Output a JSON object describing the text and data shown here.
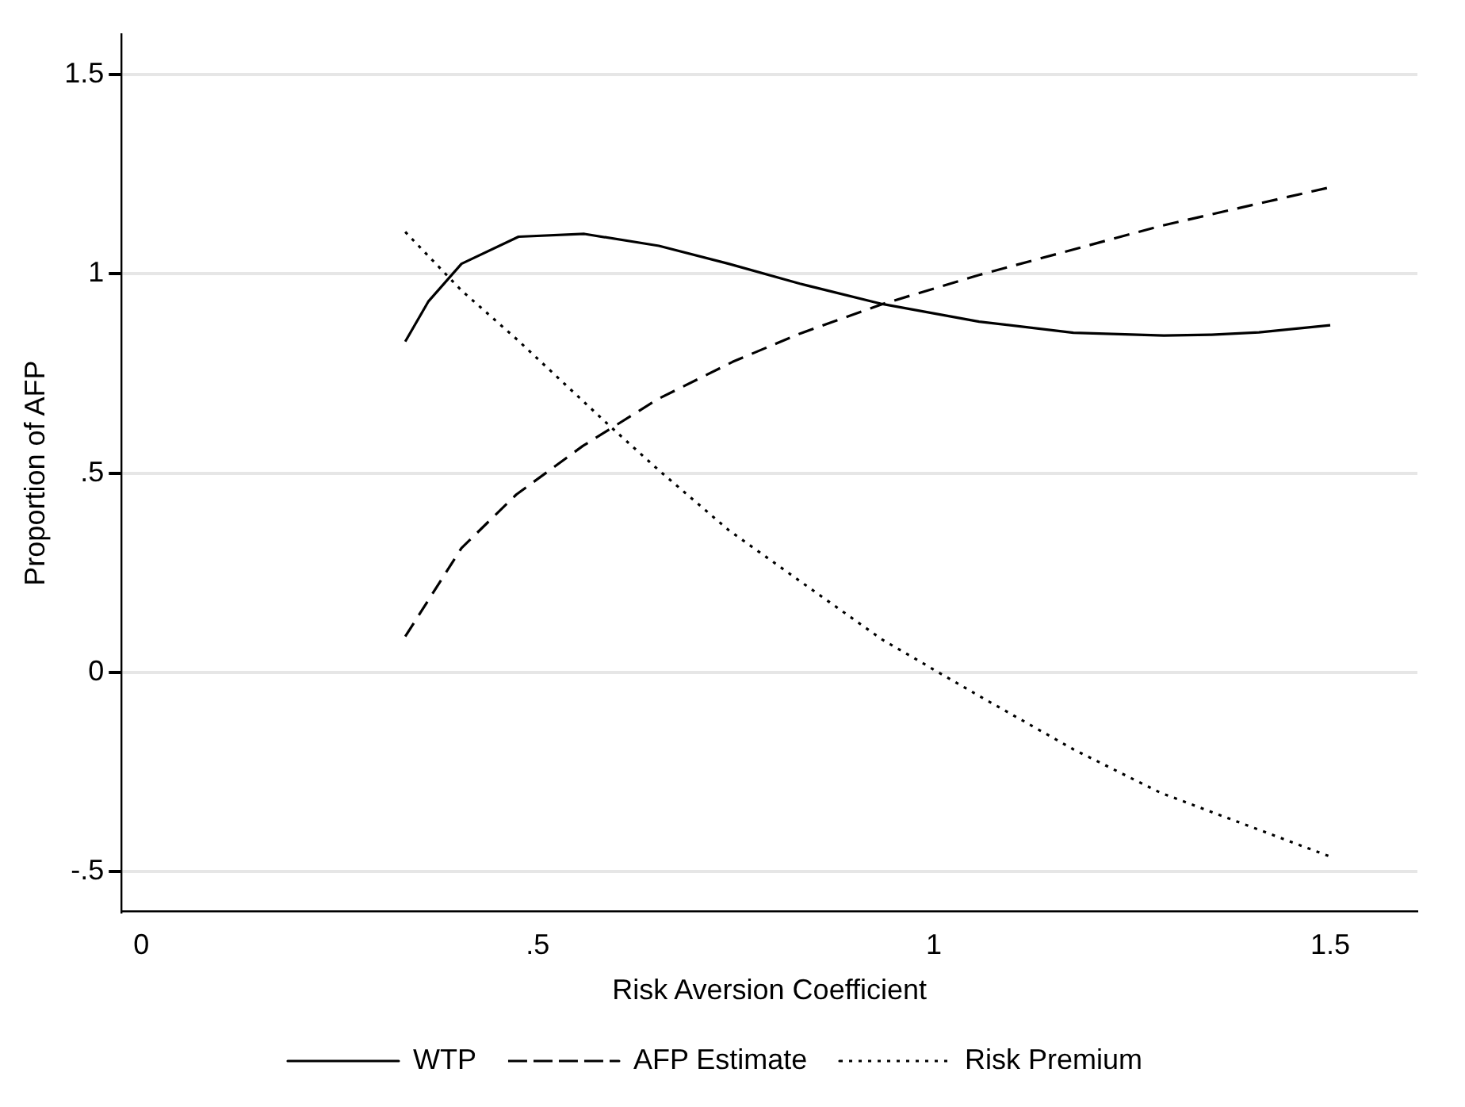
{
  "chart_data": {
    "type": "line",
    "xlabel": "Risk Aversion Coefficient",
    "ylabel": "Proportion of AFP",
    "xlim": [
      -0.025,
      1.61
    ],
    "ylim": [
      -0.6,
      1.6
    ],
    "xticks": [
      0,
      {
        "value": 0.5,
        "label": ".5"
      },
      1,
      1.5
    ],
    "yticks": [
      {
        "value": -0.5,
        "label": "-.5"
      },
      0,
      {
        "value": 0.5,
        "label": ".5"
      },
      1,
      1.5
    ],
    "grid": "y",
    "legend": "bottom",
    "series": [
      {
        "name": "WTP",
        "color": "#000000",
        "line_style": "solid",
        "x": [
          0.333,
          0.362,
          0.404,
          0.476,
          0.559,
          0.653,
          0.741,
          0.831,
          0.935,
          1.057,
          1.176,
          1.29,
          1.35,
          1.41,
          1.5
        ],
        "values": [
          0.83,
          0.93,
          1.025,
          1.093,
          1.1,
          1.07,
          1.025,
          0.975,
          0.924,
          0.88,
          0.852,
          0.845,
          0.847,
          0.853,
          0.871
        ]
      },
      {
        "name": "AFP Estimate",
        "color": "#000000",
        "line_style": "dashed",
        "x": [
          0.333,
          0.404,
          0.473,
          0.557,
          0.652,
          0.746,
          0.831,
          0.935,
          1.057,
          1.286,
          1.5
        ],
        "values": [
          0.09,
          0.312,
          0.446,
          0.568,
          0.686,
          0.779,
          0.85,
          0.924,
          0.997,
          1.12,
          1.217
        ]
      },
      {
        "name": "Risk Premium",
        "color": "#000000",
        "line_style": "dotted",
        "x": [
          0.333,
          0.404,
          0.473,
          0.59,
          0.653,
          0.741,
          0.831,
          0.935,
          1.057,
          1.176,
          1.286,
          1.5
        ],
        "values": [
          1.105,
          0.958,
          0.837,
          0.62,
          0.507,
          0.357,
          0.229,
          0.082,
          -0.059,
          -0.193,
          -0.302,
          -0.462
        ]
      }
    ]
  }
}
